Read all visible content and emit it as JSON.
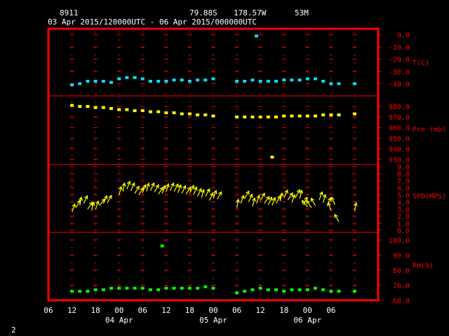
{
  "header": {
    "station_id": "8911",
    "latitude": "79.88S",
    "longitude": "178.57W",
    "elevation": "53M",
    "time_range": "03 Apr 2015/120000UTC - 06 Apr 2015/000000UTC"
  },
  "footer": {
    "page_number": "2"
  },
  "x_axis": {
    "hour_ticks": [
      "06",
      "12",
      "18",
      "00",
      "06",
      "12",
      "18",
      "00",
      "06",
      "12",
      "18",
      "00",
      "06"
    ],
    "day_labels": [
      "04 Apr",
      "05 Apr",
      "06 Apr"
    ]
  },
  "colors": {
    "frame": "#ff0000",
    "grid": "#ff0000",
    "axis_labels": "#ff0000",
    "temperature": "#00e5ff",
    "pressure": "#ffff00",
    "wind": "#ffff00",
    "humidity": "#00ff00",
    "header_text": "#ffffff"
  },
  "chart_data": [
    {
      "type": "scatter",
      "ylabel": "T(C)",
      "ylim": [
        -50,
        5
      ],
      "yticks": [
        "0.0",
        "-10.0",
        "-20.0",
        "-30.0",
        "-40.0"
      ],
      "series": [
        {
          "x": [
            12,
            14,
            16,
            18,
            20,
            22,
            24,
            26,
            28,
            30,
            32,
            34,
            36,
            38,
            40,
            42,
            44,
            46,
            48,
            54,
            56,
            58,
            60,
            62,
            64,
            66,
            68,
            70,
            72,
            74,
            76,
            78,
            80,
            84
          ],
          "values": [
            -41,
            -40,
            -38,
            -38,
            -38,
            -39,
            -36,
            -35,
            -35,
            -36,
            -38,
            -38,
            -38,
            -37,
            -37,
            -38,
            -37,
            -37,
            -36,
            -38,
            -38,
            -37,
            -38,
            -38,
            -38,
            -37,
            -37,
            -37,
            -36,
            -36,
            -38,
            -40,
            -40,
            -40
          ]
        },
        {
          "x": [
            59
          ],
          "values": [
            -1
          ]
        }
      ]
    },
    {
      "type": "scatter",
      "ylabel": "Pre (mb)",
      "ylim": [
        925,
        990
      ],
      "yticks": [
        "980.0",
        "970.0",
        "960.0",
        "950.0",
        "940.0",
        "930.0"
      ],
      "series": [
        {
          "x": [
            12,
            14,
            16,
            18,
            20,
            22,
            24,
            26,
            28,
            30,
            32,
            34,
            36,
            38,
            40,
            42,
            44,
            46,
            48,
            54,
            56,
            58,
            60,
            62,
            64,
            66,
            68,
            70,
            72,
            74,
            76,
            78,
            80,
            84
          ],
          "values": [
            981,
            980,
            980,
            979,
            979,
            978,
            977,
            977,
            976,
            976,
            975,
            975,
            974,
            974,
            973,
            973,
            972,
            972,
            971,
            970,
            970,
            970,
            970,
            970,
            970,
            971,
            971,
            971,
            971,
            971,
            972,
            972,
            972,
            973
          ]
        },
        {
          "x": [
            63
          ],
          "values": [
            932
          ]
        }
      ]
    },
    {
      "type": "scatter",
      "ylabel": "SPD(MPS)",
      "ylim": [
        -0.3,
        9.3
      ],
      "yticks": [
        "9.0",
        "8.0",
        "7.0",
        "6.0",
        "5.0",
        "4.0",
        "3.0",
        "2.0",
        "1.0",
        "0.0"
      ],
      "series": [
        {
          "x": [
            12,
            13,
            14,
            15,
            16,
            17,
            18,
            19,
            20,
            21,
            24,
            25,
            26,
            27,
            28,
            29,
            30,
            31,
            32,
            33,
            34,
            35,
            36,
            37,
            38,
            39,
            40,
            41,
            42,
            43,
            44,
            45,
            46,
            47,
            48,
            49,
            54,
            55,
            56,
            57,
            58,
            59,
            60,
            61,
            62,
            63,
            64,
            65,
            66,
            67,
            68,
            69,
            70,
            71,
            72,
            73,
            74,
            75,
            76,
            77,
            78,
            79,
            80,
            84
          ],
          "values": [
            2.6,
            3.2,
            3.5,
            3.8,
            3.0,
            2.8,
            3.0,
            3.5,
            3.8,
            3.9,
            5.0,
            5.5,
            5.8,
            5.6,
            5.2,
            5.0,
            5.3,
            5.5,
            5.6,
            5.4,
            5.1,
            5.2,
            5.4,
            5.6,
            5.5,
            5.3,
            5.2,
            5.1,
            5.3,
            5.0,
            4.8,
            4.6,
            4.8,
            4.2,
            4.5,
            4.4,
            3.2,
            3.8,
            4.5,
            4.0,
            3.4,
            3.8,
            4.2,
            3.8,
            3.6,
            3.5,
            3.8,
            4.1,
            4.6,
            4.3,
            3.9,
            4.7,
            4.5,
            3.6,
            3.3,
            3.2,
            3.5,
            4.3,
            3.9,
            3.5,
            2.8,
            3.6,
            1.2,
            2.7
          ],
          "dir_deg": [
            20,
            30,
            10,
            25,
            35,
            15,
            20,
            40,
            25,
            30,
            15,
            10,
            20,
            25,
            30,
            35,
            20,
            15,
            25,
            30,
            35,
            20,
            15,
            25,
            30,
            20,
            25,
            35,
            30,
            20,
            25,
            15,
            30,
            25,
            20,
            30,
            10,
            20,
            30,
            25,
            15,
            20,
            30,
            35,
            25,
            20,
            30,
            15,
            25,
            35,
            20,
            30,
            15,
            25,
            -40,
            -35,
            -30,
            20,
            15,
            25,
            -20,
            -25,
            -30,
            10
          ]
        }
      ]
    },
    {
      "type": "scatter",
      "ylabel": "RH(%)",
      "ylim": [
        60,
        105
      ],
      "yticks": [
        "100.0",
        "90.0",
        "80.0",
        "70.0",
        "60.0"
      ],
      "series": [
        {
          "x": [
            12,
            14,
            16,
            18,
            20,
            22,
            24,
            26,
            28,
            30,
            32,
            34,
            36,
            38,
            40,
            42,
            44,
            46,
            48,
            54,
            56,
            58,
            60,
            62,
            64,
            66,
            68,
            70,
            72,
            74,
            76,
            78,
            80,
            84
          ],
          "values": [
            66,
            66,
            66,
            67,
            67,
            68,
            68,
            68,
            68,
            68,
            67,
            67,
            68,
            68,
            68,
            68,
            68,
            69,
            68,
            65,
            66,
            67,
            68,
            67,
            67,
            66,
            67,
            67,
            67,
            68,
            67,
            66,
            66,
            66
          ]
        },
        {
          "x": [
            35
          ],
          "values": [
            96
          ]
        }
      ]
    }
  ]
}
